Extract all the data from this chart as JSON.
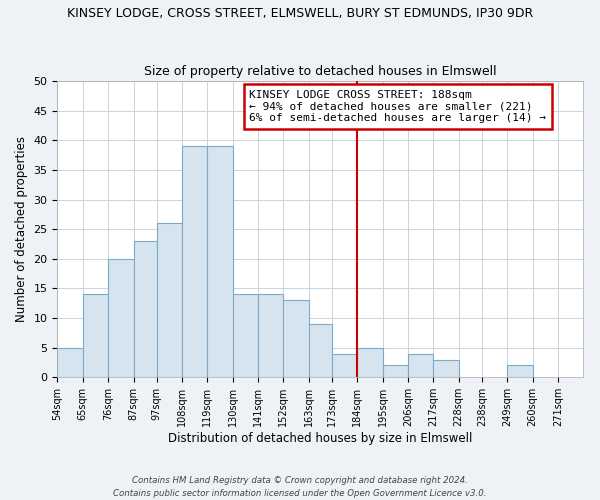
{
  "title": "KINSEY LODGE, CROSS STREET, ELMSWELL, BURY ST EDMUNDS, IP30 9DR",
  "subtitle": "Size of property relative to detached houses in Elmswell",
  "xlabel": "Distribution of detached houses by size in Elmswell",
  "ylabel": "Number of detached properties",
  "bin_labels": [
    "54sqm",
    "65sqm",
    "76sqm",
    "87sqm",
    "97sqm",
    "108sqm",
    "119sqm",
    "130sqm",
    "141sqm",
    "152sqm",
    "163sqm",
    "173sqm",
    "184sqm",
    "195sqm",
    "206sqm",
    "217sqm",
    "228sqm",
    "238sqm",
    "249sqm",
    "260sqm",
    "271sqm"
  ],
  "bin_edges": [
    54,
    65,
    76,
    87,
    97,
    108,
    119,
    130,
    141,
    152,
    163,
    173,
    184,
    195,
    206,
    217,
    228,
    238,
    249,
    260,
    271,
    282
  ],
  "bar_values": [
    5,
    14,
    20,
    23,
    26,
    39,
    39,
    14,
    14,
    13,
    9,
    4,
    5,
    2,
    4,
    3,
    0,
    0,
    2,
    0,
    0
  ],
  "bar_color": "#d6e4f0",
  "bar_edge_color": "#7eaac8",
  "vline_x": 184,
  "vline_color": "#cc0000",
  "annotation_text": "KINSEY LODGE CROSS STREET: 188sqm\n← 94% of detached houses are smaller (221)\n6% of semi-detached houses are larger (14) →",
  "annotation_box_color": "#ffffff",
  "annotation_box_edge": "#cc0000",
  "ylim": [
    0,
    50
  ],
  "yticks": [
    0,
    5,
    10,
    15,
    20,
    25,
    30,
    35,
    40,
    45,
    50
  ],
  "footer_text": "Contains HM Land Registry data © Crown copyright and database right 2024.\nContains public sector information licensed under the Open Government Licence v3.0.",
  "bg_color": "#eef2f7",
  "plot_bg_color": "#ffffff",
  "grid_color": "#c8d4e0"
}
